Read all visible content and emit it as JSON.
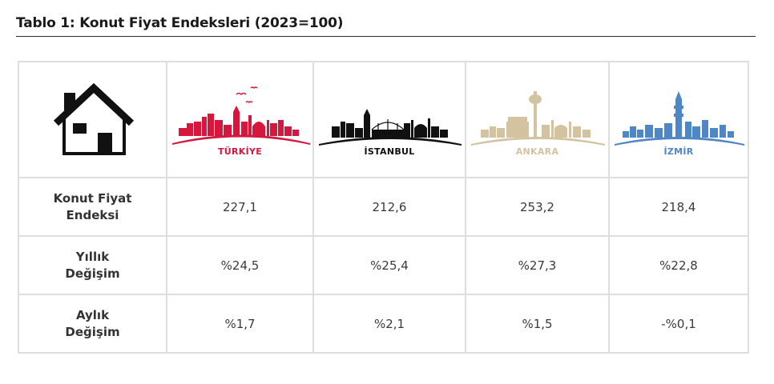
{
  "title": "Tablo 1: Konut Fiyat Endeksleri (2023=100)",
  "columns": [
    {
      "name": "TÜRKİYE",
      "color": "#d6163c"
    },
    {
      "name": "İSTANBUL",
      "color": "#111111"
    },
    {
      "name": "ANKARA",
      "color": "#d4c3a1"
    },
    {
      "name": "İZMİR",
      "color": "#4f86c6"
    }
  ],
  "rows": [
    {
      "label_line1": "Konut Fiyat",
      "label_line2": "Endeksi",
      "values": [
        "227,1",
        "212,6",
        "253,2",
        "218,4"
      ]
    },
    {
      "label_line1": "Yıllık",
      "label_line2": "Değişim",
      "values": [
        "%24,5",
        "%25,4",
        "%27,3",
        "%22,8"
      ]
    },
    {
      "label_line1": "Aylık",
      "label_line2": "Değişim",
      "values": [
        "%1,7",
        "%2,1",
        "%1,5",
        "-%0,1"
      ]
    }
  ],
  "icons": {
    "corner": "house-icon",
    "turkiye": "turkiye-skyline-icon",
    "istanbul": "istanbul-skyline-icon",
    "ankara": "ankara-skyline-icon",
    "izmir": "izmir-skyline-icon"
  }
}
